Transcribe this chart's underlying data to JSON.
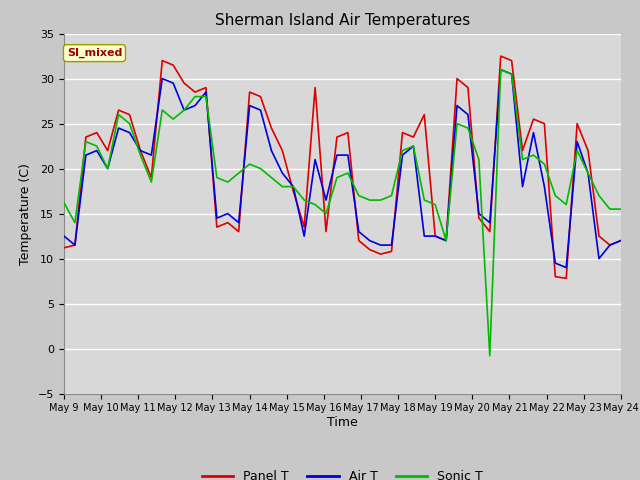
{
  "title": "Sherman Island Air Temperatures",
  "xlabel": "Time",
  "ylabel": "Temperature (C)",
  "ylim": [
    -5,
    35
  ],
  "background_color": "#c8c8c8",
  "plot_bg_color": "#d8d8d8",
  "annotation_label": "SI_mixed",
  "annotation_bg": "#ffffcc",
  "annotation_border": "#999900",
  "annotation_text_color": "#990000",
  "x_tick_labels": [
    "May 9",
    "May 10",
    "May 11",
    "May 12",
    "May 13",
    "May 14",
    "May 15",
    "May 16",
    "May 17",
    "May 18",
    "May 19",
    "May 20",
    "May 21",
    "May 22",
    "May 23",
    "May 24"
  ],
  "legend_entries": [
    "Panel T",
    "Air T",
    "Sonic T"
  ],
  "legend_colors": [
    "#dd0000",
    "#0000dd",
    "#00bb00"
  ],
  "line_width": 1.2,
  "panel_t": [
    11.2,
    11.5,
    23.5,
    24.0,
    22.0,
    26.5,
    26.0,
    22.0,
    19.0,
    32.0,
    31.5,
    29.5,
    28.5,
    29.0,
    13.5,
    14.0,
    13.0,
    28.5,
    28.0,
    24.5,
    22.0,
    17.5,
    13.5,
    29.0,
    13.0,
    23.5,
    24.0,
    12.0,
    11.0,
    10.5,
    10.8,
    24.0,
    23.5,
    26.0,
    12.5,
    12.0,
    30.0,
    29.0,
    14.5,
    13.0,
    32.5,
    32.0,
    22.0,
    25.5,
    25.0,
    8.0,
    7.8,
    25.0,
    22.0,
    12.5,
    11.5,
    12.0
  ],
  "air_t": [
    12.5,
    11.5,
    21.5,
    22.0,
    20.0,
    24.5,
    24.0,
    22.0,
    21.5,
    30.0,
    29.5,
    26.5,
    27.0,
    28.5,
    14.5,
    15.0,
    14.0,
    27.0,
    26.5,
    22.0,
    19.5,
    18.0,
    12.5,
    21.0,
    16.5,
    21.5,
    21.5,
    13.0,
    12.0,
    11.5,
    11.5,
    21.5,
    22.5,
    12.5,
    12.5,
    12.0,
    27.0,
    26.0,
    15.0,
    14.0,
    31.0,
    30.5,
    18.0,
    24.0,
    18.0,
    9.5,
    9.0,
    23.0,
    19.5,
    10.0,
    11.5,
    12.0
  ],
  "sonic_t": [
    16.2,
    14.0,
    23.0,
    22.5,
    20.0,
    26.0,
    25.0,
    21.5,
    18.5,
    26.5,
    25.5,
    26.5,
    28.0,
    28.0,
    19.0,
    18.5,
    19.5,
    20.5,
    20.0,
    19.0,
    18.0,
    18.0,
    16.5,
    16.0,
    15.0,
    19.0,
    19.5,
    17.0,
    16.5,
    16.5,
    17.0,
    22.0,
    22.5,
    16.5,
    16.0,
    12.0,
    25.0,
    24.5,
    21.0,
    -0.8,
    31.0,
    30.5,
    21.0,
    21.5,
    20.5,
    17.0,
    16.0,
    22.0,
    19.5,
    17.0,
    15.5,
    15.5
  ]
}
